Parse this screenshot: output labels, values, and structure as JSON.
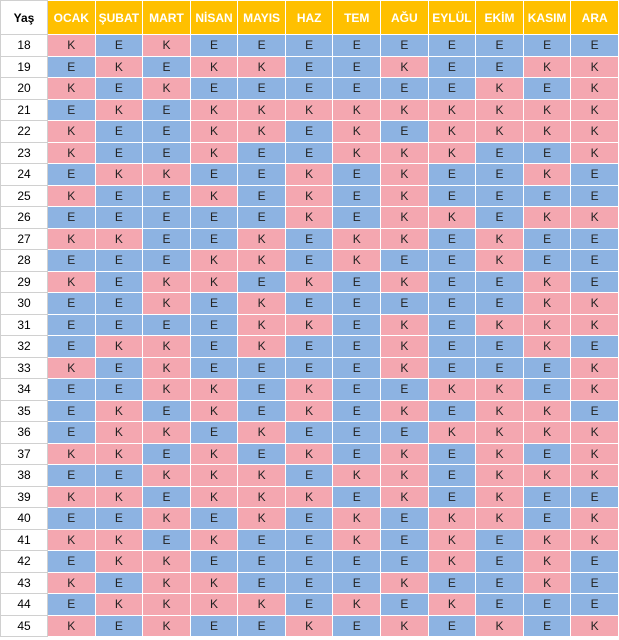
{
  "table": {
    "headers": [
      "Yaş",
      "OCAK",
      "ŞUBAT",
      "MART",
      "NİSAN",
      "MAYIS",
      "HAZ",
      "TEM",
      "AĞU",
      "EYLÜL",
      "EKİM",
      "KASIM",
      "ARA"
    ],
    "cell_colors": {
      "K": "#f4a7b0",
      "E": "#8db3e2"
    },
    "header_color": "#ffc000",
    "rows": [
      [
        "18",
        "K",
        "E",
        "K",
        "E",
        "E",
        "E",
        "E",
        "E",
        "E",
        "E",
        "E",
        "E"
      ],
      [
        "19",
        "E",
        "K",
        "E",
        "K",
        "K",
        "E",
        "E",
        "K",
        "E",
        "E",
        "K",
        "K"
      ],
      [
        "20",
        "K",
        "E",
        "K",
        "E",
        "E",
        "E",
        "E",
        "E",
        "E",
        "K",
        "E",
        "K"
      ],
      [
        "21",
        "E",
        "K",
        "E",
        "K",
        "K",
        "K",
        "K",
        "K",
        "K",
        "K",
        "K",
        "K"
      ],
      [
        "22",
        "K",
        "E",
        "E",
        "K",
        "K",
        "E",
        "K",
        "E",
        "K",
        "K",
        "K",
        "K"
      ],
      [
        "23",
        "K",
        "E",
        "E",
        "K",
        "E",
        "E",
        "K",
        "K",
        "K",
        "E",
        "E",
        "K"
      ],
      [
        "24",
        "E",
        "K",
        "K",
        "E",
        "E",
        "K",
        "E",
        "K",
        "E",
        "E",
        "K",
        "E"
      ],
      [
        "25",
        "K",
        "E",
        "E",
        "K",
        "E",
        "K",
        "E",
        "K",
        "E",
        "E",
        "E",
        "E"
      ],
      [
        "26",
        "E",
        "E",
        "E",
        "E",
        "E",
        "K",
        "E",
        "K",
        "K",
        "E",
        "K",
        "K"
      ],
      [
        "27",
        "K",
        "K",
        "E",
        "E",
        "K",
        "E",
        "K",
        "K",
        "E",
        "K",
        "E",
        "E"
      ],
      [
        "28",
        "E",
        "E",
        "E",
        "K",
        "K",
        "E",
        "K",
        "E",
        "E",
        "K",
        "E",
        "E"
      ],
      [
        "29",
        "K",
        "E",
        "K",
        "K",
        "E",
        "K",
        "E",
        "K",
        "E",
        "E",
        "K",
        "E"
      ],
      [
        "30",
        "E",
        "E",
        "K",
        "E",
        "K",
        "E",
        "E",
        "E",
        "E",
        "E",
        "K",
        "K"
      ],
      [
        "31",
        "E",
        "E",
        "E",
        "E",
        "K",
        "K",
        "E",
        "K",
        "E",
        "K",
        "K",
        "K"
      ],
      [
        "32",
        "E",
        "K",
        "K",
        "E",
        "K",
        "E",
        "E",
        "K",
        "E",
        "E",
        "K",
        "E"
      ],
      [
        "33",
        "K",
        "E",
        "K",
        "E",
        "E",
        "E",
        "E",
        "K",
        "E",
        "E",
        "E",
        "K"
      ],
      [
        "34",
        "E",
        "E",
        "K",
        "K",
        "E",
        "K",
        "E",
        "E",
        "K",
        "K",
        "E",
        "K"
      ],
      [
        "35",
        "E",
        "K",
        "E",
        "K",
        "E",
        "K",
        "E",
        "K",
        "E",
        "K",
        "K",
        "E"
      ],
      [
        "36",
        "E",
        "K",
        "K",
        "E",
        "K",
        "E",
        "E",
        "E",
        "K",
        "K",
        "K",
        "K"
      ],
      [
        "37",
        "K",
        "K",
        "E",
        "K",
        "E",
        "K",
        "E",
        "K",
        "E",
        "K",
        "E",
        "K"
      ],
      [
        "38",
        "E",
        "E",
        "K",
        "K",
        "K",
        "E",
        "K",
        "K",
        "E",
        "K",
        "K",
        "K"
      ],
      [
        "39",
        "K",
        "K",
        "E",
        "K",
        "K",
        "K",
        "E",
        "K",
        "E",
        "K",
        "E",
        "E"
      ],
      [
        "40",
        "E",
        "E",
        "K",
        "E",
        "K",
        "E",
        "K",
        "E",
        "K",
        "K",
        "E",
        "K"
      ],
      [
        "41",
        "K",
        "K",
        "E",
        "K",
        "E",
        "E",
        "K",
        "E",
        "K",
        "E",
        "K",
        "K"
      ],
      [
        "42",
        "E",
        "K",
        "K",
        "E",
        "E",
        "E",
        "E",
        "E",
        "K",
        "E",
        "K",
        "E"
      ],
      [
        "43",
        "K",
        "E",
        "K",
        "K",
        "E",
        "E",
        "E",
        "K",
        "E",
        "E",
        "K",
        "E"
      ],
      [
        "44",
        "E",
        "K",
        "K",
        "K",
        "K",
        "E",
        "K",
        "E",
        "K",
        "E",
        "E",
        "E"
      ],
      [
        "45",
        "K",
        "E",
        "K",
        "E",
        "E",
        "K",
        "E",
        "K",
        "E",
        "K",
        "E",
        "K"
      ]
    ]
  }
}
